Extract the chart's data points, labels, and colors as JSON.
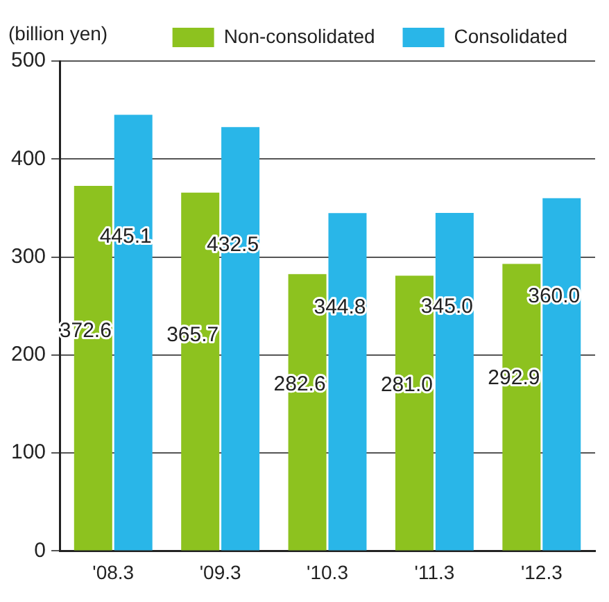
{
  "chart_data": {
    "type": "bar",
    "ylabel": "(billion yen)",
    "categories": [
      "'08.3",
      "'09.3",
      "'10.3",
      "'11.3",
      "'12.3"
    ],
    "series": [
      {
        "name": "Non-consolidated",
        "color": "#8dc21f",
        "values": [
          372.6,
          365.7,
          282.6,
          281.0,
          292.9
        ],
        "value_labels": [
          "372.6",
          "365.7",
          "282.6",
          "281.0",
          "292.9"
        ]
      },
      {
        "name": "Consolidated",
        "color": "#29b6e8",
        "values": [
          445.1,
          432.5,
          344.8,
          345.0,
          360.0
        ],
        "value_labels": [
          "445.1",
          "432.5",
          "344.8",
          "345.0",
          "360.0"
        ]
      }
    ],
    "ylim": [
      0,
      500
    ],
    "yticks": [
      0,
      100,
      200,
      300,
      400,
      500
    ],
    "grid": "y",
    "legend": "top"
  }
}
